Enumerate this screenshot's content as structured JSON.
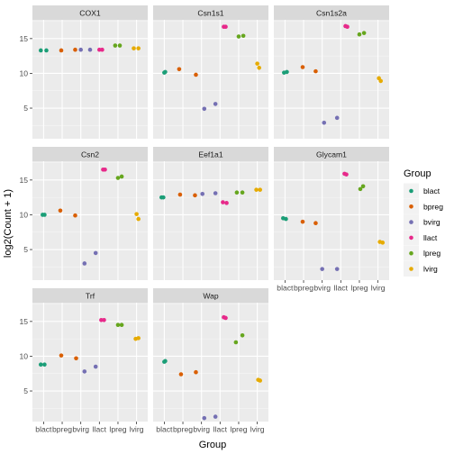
{
  "chart_data": {
    "type": "scatter",
    "layout": "facet_wrap 3 columns",
    "xlabel": "Group",
    "ylabel": "log2(Count + 1)",
    "categories": [
      "blact",
      "bpreg",
      "bvirg",
      "llact",
      "lpreg",
      "lvirg"
    ],
    "x_tick_labels": [
      "blact",
      "bpreg",
      "bvirg",
      "llact",
      "lpreg",
      "lvirg"
    ],
    "y_ticks": [
      5,
      10,
      15
    ],
    "ylim": [
      0.6,
      17.7
    ],
    "grid": true,
    "legend": {
      "title": "Group",
      "position": "right",
      "entries": [
        {
          "label": "blact",
          "color": "#1b9e77"
        },
        {
          "label": "bpreg",
          "color": "#d95f02"
        },
        {
          "label": "bvirg",
          "color": "#7570b3"
        },
        {
          "label": "llact",
          "color": "#e7298a"
        },
        {
          "label": "lpreg",
          "color": "#66a61e"
        },
        {
          "label": "lvirg",
          "color": "#e6ab02"
        }
      ]
    },
    "panels": [
      {
        "title": "COX1",
        "points": [
          {
            "group": "blact",
            "xpos": 0.85,
            "y": 13.3
          },
          {
            "group": "blact",
            "xpos": 1.15,
            "y": 13.3
          },
          {
            "group": "bpreg",
            "xpos": 1.95,
            "y": 13.3
          },
          {
            "group": "bpreg",
            "xpos": 2.7,
            "y": 13.4
          },
          {
            "group": "bvirg",
            "xpos": 3.0,
            "y": 13.4
          },
          {
            "group": "bvirg",
            "xpos": 3.5,
            "y": 13.4
          },
          {
            "group": "llact",
            "xpos": 4.0,
            "y": 13.4
          },
          {
            "group": "llact",
            "xpos": 4.15,
            "y": 13.4
          },
          {
            "group": "lpreg",
            "xpos": 4.85,
            "y": 14.0
          },
          {
            "group": "lpreg",
            "xpos": 5.1,
            "y": 14.0
          },
          {
            "group": "lvirg",
            "xpos": 5.85,
            "y": 13.6
          },
          {
            "group": "lvirg",
            "xpos": 6.1,
            "y": 13.6
          }
        ]
      },
      {
        "title": "Csn1s1",
        "points": [
          {
            "group": "blact",
            "xpos": 1.0,
            "y": 10.1
          },
          {
            "group": "blact",
            "xpos": 1.05,
            "y": 10.2
          },
          {
            "group": "bpreg",
            "xpos": 1.8,
            "y": 10.6
          },
          {
            "group": "bpreg",
            "xpos": 2.7,
            "y": 9.8
          },
          {
            "group": "bvirg",
            "xpos": 3.15,
            "y": 4.9
          },
          {
            "group": "bvirg",
            "xpos": 3.75,
            "y": 5.6
          },
          {
            "group": "llact",
            "xpos": 4.2,
            "y": 16.7
          },
          {
            "group": "llact",
            "xpos": 4.3,
            "y": 16.7
          },
          {
            "group": "lpreg",
            "xpos": 5.0,
            "y": 15.3
          },
          {
            "group": "lpreg",
            "xpos": 5.25,
            "y": 15.4
          },
          {
            "group": "lvirg",
            "xpos": 6.0,
            "y": 11.4
          },
          {
            "group": "lvirg",
            "xpos": 6.1,
            "y": 10.8
          }
        ]
      },
      {
        "title": "Csn1s2a",
        "points": [
          {
            "group": "blact",
            "xpos": 0.95,
            "y": 10.1
          },
          {
            "group": "blact",
            "xpos": 1.1,
            "y": 10.2
          },
          {
            "group": "bpreg",
            "xpos": 1.95,
            "y": 10.9
          },
          {
            "group": "bpreg",
            "xpos": 2.65,
            "y": 10.3
          },
          {
            "group": "bvirg",
            "xpos": 3.1,
            "y": 2.9
          },
          {
            "group": "bvirg",
            "xpos": 3.8,
            "y": 3.6
          },
          {
            "group": "llact",
            "xpos": 4.25,
            "y": 16.8
          },
          {
            "group": "llact",
            "xpos": 4.35,
            "y": 16.7
          },
          {
            "group": "lpreg",
            "xpos": 5.0,
            "y": 15.6
          },
          {
            "group": "lpreg",
            "xpos": 5.25,
            "y": 15.8
          },
          {
            "group": "lvirg",
            "xpos": 6.05,
            "y": 9.3
          },
          {
            "group": "lvirg",
            "xpos": 6.15,
            "y": 8.9
          }
        ]
      },
      {
        "title": "Csn2",
        "points": [
          {
            "group": "blact",
            "xpos": 0.95,
            "y": 10.0
          },
          {
            "group": "blact",
            "xpos": 1.05,
            "y": 10.0
          },
          {
            "group": "bpreg",
            "xpos": 1.9,
            "y": 10.6
          },
          {
            "group": "bpreg",
            "xpos": 2.7,
            "y": 9.9
          },
          {
            "group": "bvirg",
            "xpos": 3.2,
            "y": 3.0
          },
          {
            "group": "bvirg",
            "xpos": 3.8,
            "y": 4.5
          },
          {
            "group": "llact",
            "xpos": 4.2,
            "y": 16.5
          },
          {
            "group": "llact",
            "xpos": 4.3,
            "y": 16.5
          },
          {
            "group": "lpreg",
            "xpos": 5.0,
            "y": 15.3
          },
          {
            "group": "lpreg",
            "xpos": 5.2,
            "y": 15.5
          },
          {
            "group": "lvirg",
            "xpos": 6.0,
            "y": 10.1
          },
          {
            "group": "lvirg",
            "xpos": 6.1,
            "y": 9.4
          }
        ]
      },
      {
        "title": "Eef1a1",
        "points": [
          {
            "group": "blact",
            "xpos": 0.85,
            "y": 12.5
          },
          {
            "group": "blact",
            "xpos": 0.95,
            "y": 12.5
          },
          {
            "group": "bpreg",
            "xpos": 1.85,
            "y": 12.9
          },
          {
            "group": "bpreg",
            "xpos": 2.65,
            "y": 12.8
          },
          {
            "group": "bvirg",
            "xpos": 3.05,
            "y": 13.0
          },
          {
            "group": "bvirg",
            "xpos": 3.75,
            "y": 13.1
          },
          {
            "group": "llact",
            "xpos": 4.15,
            "y": 11.8
          },
          {
            "group": "llact",
            "xpos": 4.35,
            "y": 11.7
          },
          {
            "group": "lpreg",
            "xpos": 4.9,
            "y": 13.2
          },
          {
            "group": "lpreg",
            "xpos": 5.2,
            "y": 13.2
          },
          {
            "group": "lvirg",
            "xpos": 5.95,
            "y": 13.6
          },
          {
            "group": "lvirg",
            "xpos": 6.15,
            "y": 13.6
          }
        ]
      },
      {
        "title": "Glycam1",
        "points": [
          {
            "group": "blact",
            "xpos": 0.9,
            "y": 9.5
          },
          {
            "group": "blact",
            "xpos": 1.05,
            "y": 9.4
          },
          {
            "group": "bpreg",
            "xpos": 1.95,
            "y": 9.0
          },
          {
            "group": "bpreg",
            "xpos": 2.65,
            "y": 8.8
          },
          {
            "group": "bvirg",
            "xpos": 3.0,
            "y": 2.2
          },
          {
            "group": "bvirg",
            "xpos": 3.8,
            "y": 2.2
          },
          {
            "group": "llact",
            "xpos": 4.2,
            "y": 15.9
          },
          {
            "group": "llact",
            "xpos": 4.3,
            "y": 15.8
          },
          {
            "group": "lpreg",
            "xpos": 5.05,
            "y": 13.7
          },
          {
            "group": "lpreg",
            "xpos": 5.2,
            "y": 14.1
          },
          {
            "group": "lvirg",
            "xpos": 6.1,
            "y": 6.1
          },
          {
            "group": "lvirg",
            "xpos": 6.25,
            "y": 6.0
          }
        ]
      },
      {
        "title": "Trf",
        "points": [
          {
            "group": "blact",
            "xpos": 0.85,
            "y": 8.8
          },
          {
            "group": "blact",
            "xpos": 1.05,
            "y": 8.8
          },
          {
            "group": "bpreg",
            "xpos": 1.95,
            "y": 10.1
          },
          {
            "group": "bpreg",
            "xpos": 2.75,
            "y": 9.7
          },
          {
            "group": "bvirg",
            "xpos": 3.2,
            "y": 7.8
          },
          {
            "group": "bvirg",
            "xpos": 3.8,
            "y": 8.5
          },
          {
            "group": "llact",
            "xpos": 4.1,
            "y": 15.2
          },
          {
            "group": "llact",
            "xpos": 4.25,
            "y": 15.2
          },
          {
            "group": "lpreg",
            "xpos": 5.0,
            "y": 14.5
          },
          {
            "group": "lpreg",
            "xpos": 5.2,
            "y": 14.5
          },
          {
            "group": "lvirg",
            "xpos": 5.95,
            "y": 12.5
          },
          {
            "group": "lvirg",
            "xpos": 6.1,
            "y": 12.6
          }
        ]
      },
      {
        "title": "Wap",
        "points": [
          {
            "group": "blact",
            "xpos": 1.0,
            "y": 9.2
          },
          {
            "group": "blact",
            "xpos": 1.05,
            "y": 9.3
          },
          {
            "group": "bpreg",
            "xpos": 1.9,
            "y": 7.4
          },
          {
            "group": "bpreg",
            "xpos": 2.7,
            "y": 7.7
          },
          {
            "group": "bvirg",
            "xpos": 3.15,
            "y": 1.1
          },
          {
            "group": "bvirg",
            "xpos": 3.75,
            "y": 1.3
          },
          {
            "group": "llact",
            "xpos": 4.2,
            "y": 15.6
          },
          {
            "group": "llact",
            "xpos": 4.3,
            "y": 15.5
          },
          {
            "group": "lpreg",
            "xpos": 4.85,
            "y": 12.0
          },
          {
            "group": "lpreg",
            "xpos": 5.2,
            "y": 13.0
          },
          {
            "group": "lvirg",
            "xpos": 6.05,
            "y": 6.6
          },
          {
            "group": "lvirg",
            "xpos": 6.15,
            "y": 6.5
          }
        ]
      }
    ]
  }
}
